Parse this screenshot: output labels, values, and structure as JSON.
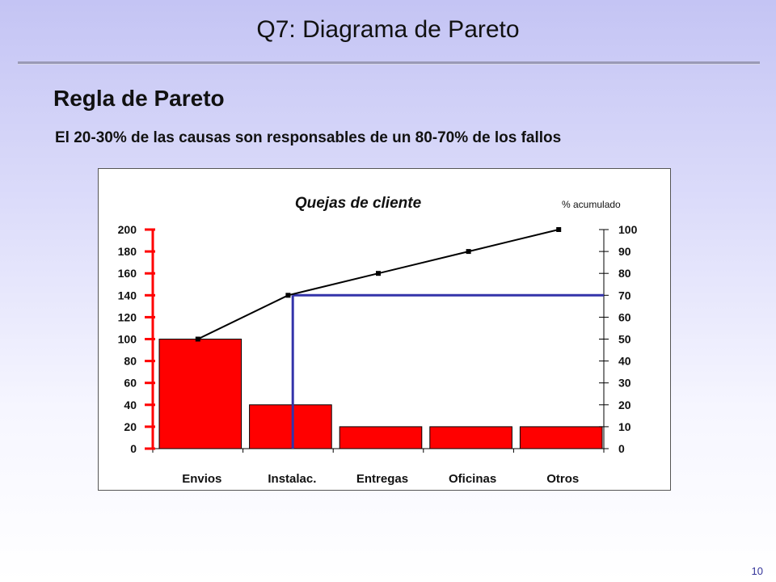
{
  "slide": {
    "title": "Q7: Diagrama de Pareto",
    "heading": "Regla de Pareto",
    "subtitle": "El 20-30% de las causas son responsables de un 80-70% de los fallos",
    "page_number": "10"
  },
  "chart_data": {
    "type": "bar",
    "title": "Quejas de cliente",
    "categories": [
      "Envios",
      "Instalac.",
      "Entregas",
      "Oficinas",
      "Otros"
    ],
    "values": [
      100,
      40,
      20,
      20,
      20
    ],
    "cumulative_percent": [
      50,
      70,
      80,
      90,
      100
    ],
    "y_left": {
      "ylim": [
        0,
        200
      ],
      "ticks": [
        "0",
        "20",
        "40",
        "60",
        "80",
        "100",
        "120",
        "140",
        "160",
        "180",
        "200"
      ]
    },
    "y_right": {
      "label": "% acumulado",
      "ylim": [
        0,
        100
      ],
      "ticks": [
        "0",
        "10",
        "20",
        "30",
        "40",
        "50",
        "60",
        "70",
        "80",
        "90",
        "100"
      ]
    },
    "pareto_marker": {
      "category": "Instalac.",
      "percent": 70
    },
    "colors": {
      "bars": "#ff0000",
      "left_axis": "#ff0000",
      "line": "#000000",
      "marker": "#3333aa"
    },
    "grid": false
  }
}
